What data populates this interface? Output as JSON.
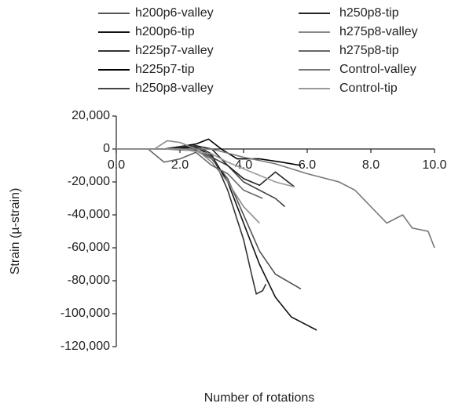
{
  "chart_data": {
    "type": "line",
    "x_label": "Number of rotations",
    "y_label": "Strain (µ-strain)",
    "xlim": [
      0,
      10
    ],
    "xticks": [
      {
        "value": 0,
        "label": "0.0"
      },
      {
        "value": 2,
        "label": "2.0"
      },
      {
        "value": 4,
        "label": "4.0"
      },
      {
        "value": 6,
        "label": "6.0"
      },
      {
        "value": 8,
        "label": "8.0"
      },
      {
        "value": 10,
        "label": "10.0"
      }
    ],
    "ylim": [
      -120000,
      20000
    ],
    "yticks": [
      {
        "value": -120000,
        "label": "-120,000"
      },
      {
        "value": -100000,
        "label": "-100,000"
      },
      {
        "value": -80000,
        "label": "-80,000"
      },
      {
        "value": -60000,
        "label": "-60,000"
      },
      {
        "value": -40000,
        "label": "-40,000"
      },
      {
        "value": -20000,
        "label": "-20,000"
      },
      0,
      {
        "value": 20000,
        "label": "20,000"
      }
    ],
    "legend": "top",
    "series": [
      {
        "name": "h200p6-valley",
        "color": "#555",
        "x": [
          0,
          1.5,
          2.5,
          3,
          3.5,
          4,
          4.5,
          5,
          5.8
        ],
        "values": [
          0,
          0,
          -1000,
          -6000,
          -18000,
          -40000,
          -62000,
          -76000,
          -85000
        ]
      },
      {
        "name": "h200p6-tip",
        "color": "#111",
        "x": [
          0,
          1.5,
          2.5,
          3,
          3.5,
          4,
          4.5,
          5,
          5.5,
          6.3
        ],
        "values": [
          0,
          0,
          1000,
          -4000,
          -20000,
          -45000,
          -70000,
          -90000,
          -102000,
          -110000
        ]
      },
      {
        "name": "h225p7-valley",
        "color": "#333",
        "x": [
          0,
          1.5,
          2.5,
          3,
          3.5,
          4,
          4.3,
          4.4,
          4.6,
          4.7
        ],
        "values": [
          0,
          0,
          2000,
          -3000,
          -25000,
          -55000,
          -80000,
          -88000,
          -86000,
          -82000
        ]
      },
      {
        "name": "h225p7-tip",
        "color": "#000",
        "x": [
          0,
          1.5,
          2.5,
          2.9,
          3.3,
          3.8,
          4.5,
          5.2,
          5.8
        ],
        "values": [
          0,
          0,
          3000,
          6000,
          0,
          -6000,
          -6000,
          -8000,
          -10000
        ]
      },
      {
        "name": "h250p8-valley",
        "color": "#444",
        "x": [
          0,
          1.5,
          2.2,
          2.8,
          3.5,
          4,
          4.5,
          5,
          5.3
        ],
        "values": [
          0,
          0,
          2000,
          -3000,
          -10000,
          -20000,
          -25000,
          -30000,
          -35000
        ]
      },
      {
        "name": "h250p8-tip",
        "color": "#222",
        "x": [
          0,
          1.5,
          2.5,
          3,
          3.5,
          4,
          4.5,
          5,
          5.6
        ],
        "values": [
          0,
          0,
          2000,
          0,
          -10000,
          -18000,
          -22000,
          -14000,
          -23000
        ]
      },
      {
        "name": "h275p8-valley",
        "color": "#888",
        "x": [
          0,
          1.2,
          1.6,
          2,
          2.5,
          3,
          3.5,
          4,
          4.5
        ],
        "values": [
          0,
          0,
          5000,
          4000,
          0,
          -8000,
          -20000,
          -35000,
          -45000
        ]
      },
      {
        "name": "h275p8-tip",
        "color": "#666",
        "x": [
          0,
          1,
          1.5,
          2,
          2.5,
          3,
          3.5,
          4,
          4.6
        ],
        "values": [
          0,
          0,
          -8000,
          -6000,
          -2000,
          -10000,
          -15000,
          -25000,
          -30000
        ]
      },
      {
        "name": "Control-valley",
        "color": "#777",
        "x": [
          0,
          3,
          4,
          5,
          6,
          7,
          7.5,
          8,
          8.5,
          9,
          9.3,
          9.8,
          10
        ],
        "values": [
          0,
          0,
          -5000,
          -9000,
          -15000,
          -20000,
          -25000,
          -35000,
          -45000,
          -40000,
          -48000,
          -50000,
          -60000
        ]
      },
      {
        "name": "Control-tip",
        "color": "#999",
        "x": [
          0,
          2,
          3,
          3.5,
          4,
          4.5,
          5,
          5.6
        ],
        "values": [
          0,
          0,
          -3000,
          -8000,
          -12000,
          -16000,
          -20000,
          -23000
        ]
      }
    ]
  }
}
